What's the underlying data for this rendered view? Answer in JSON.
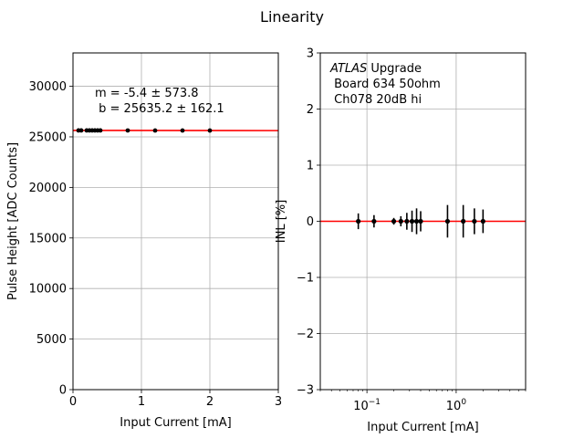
{
  "figure": {
    "title": "Linearity"
  },
  "chart_data": [
    {
      "type": "scatter",
      "xlabel": "Input Current [mA]",
      "ylabel": "Pulse Height [ADC Counts]",
      "xlim": [
        0,
        3
      ],
      "ylim": [
        0,
        33300
      ],
      "xticks": [
        0,
        1,
        2,
        3
      ],
      "yticks": [
        0,
        5000,
        10000,
        15000,
        20000,
        25000,
        30000
      ],
      "grid": true,
      "annotation_lines": [
        "m = -5.4 ± 573.8",
        " b = 25635.2 ± 162.1"
      ],
      "fit": {
        "slope": -5.4,
        "intercept": 25635.2,
        "color": "#ff0000"
      },
      "series": [
        {
          "color": "#000000",
          "points": [
            {
              "x": 0.08,
              "y": 25635
            },
            {
              "x": 0.12,
              "y": 25633
            },
            {
              "x": 0.2,
              "y": 25637
            },
            {
              "x": 0.24,
              "y": 25636
            },
            {
              "x": 0.28,
              "y": 25634
            },
            {
              "x": 0.32,
              "y": 25635
            },
            {
              "x": 0.36,
              "y": 25633
            },
            {
              "x": 0.4,
              "y": 25636
            },
            {
              "x": 0.8,
              "y": 25631
            },
            {
              "x": 1.2,
              "y": 25628
            },
            {
              "x": 1.6,
              "y": 25626
            },
            {
              "x": 2.0,
              "y": 25624
            }
          ]
        }
      ]
    },
    {
      "type": "scatter",
      "xlabel": "Input Current [mA]",
      "ylabel": "INL [%]",
      "xscale": "log",
      "xlim": [
        0.03,
        6
      ],
      "ylim": [
        -3,
        3
      ],
      "xticks": [
        {
          "value": 0.1,
          "base": "10",
          "exp": "−1"
        },
        {
          "value": 1,
          "base": "10",
          "exp": "0"
        }
      ],
      "yticks": [
        -3,
        -2,
        -1,
        0,
        1,
        2,
        3
      ],
      "grid": true,
      "annotation": {
        "italic": "ATLAS",
        "rest": " Upgrade",
        "line2": " Board 634 50ohm",
        "line3": " Ch078 20dB hi"
      },
      "reference_line": {
        "y": 0,
        "color": "#ff0000"
      },
      "series": [
        {
          "color": "#000000",
          "points": [
            {
              "x": 0.08,
              "y": 0.0,
              "err": 0.14
            },
            {
              "x": 0.12,
              "y": 0.0,
              "err": 0.11
            },
            {
              "x": 0.2,
              "y": 0.0,
              "err": 0.06
            },
            {
              "x": 0.24,
              "y": 0.0,
              "err": 0.09
            },
            {
              "x": 0.28,
              "y": 0.0,
              "err": 0.15
            },
            {
              "x": 0.32,
              "y": 0.0,
              "err": 0.19
            },
            {
              "x": 0.36,
              "y": 0.0,
              "err": 0.23
            },
            {
              "x": 0.4,
              "y": 0.0,
              "err": 0.18
            },
            {
              "x": 0.8,
              "y": 0.0,
              "err": 0.29
            },
            {
              "x": 1.2,
              "y": 0.0,
              "err": 0.29
            },
            {
              "x": 1.6,
              "y": 0.0,
              "err": 0.23
            },
            {
              "x": 2.0,
              "y": 0.0,
              "err": 0.21
            }
          ]
        }
      ]
    }
  ]
}
